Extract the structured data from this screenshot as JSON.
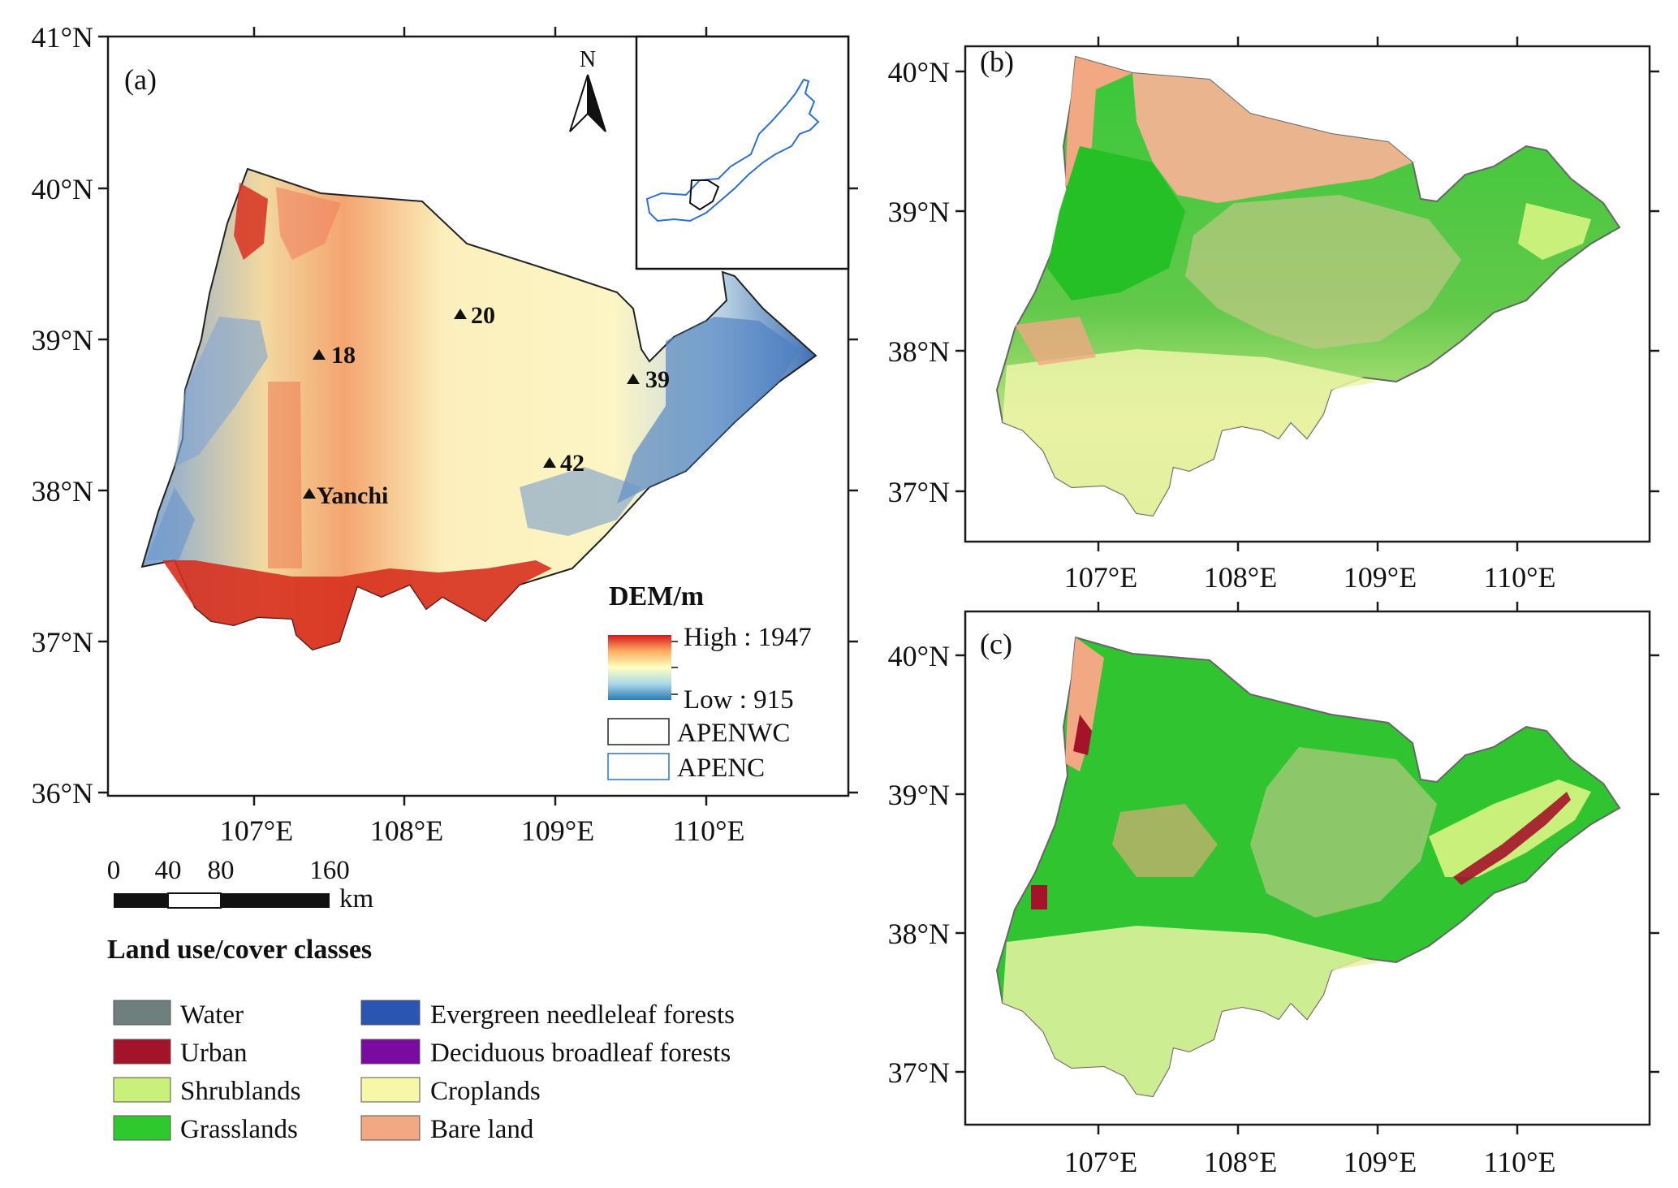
{
  "panel_a": {
    "label": "(a)",
    "lat_labels": [
      "41°N",
      "40°N",
      "39°N",
      "38°N",
      "37°N",
      "36°N"
    ],
    "lon_labels": [
      "107°E",
      "108°E",
      "109°E",
      "110°E"
    ],
    "north_arrow": "N",
    "stations": [
      "20",
      "18",
      "39",
      "42",
      "Yanchi"
    ],
    "dem_legend": {
      "title": "DEM/m",
      "high": "High : 1947",
      "low": "Low : 915",
      "colors": [
        "#d7191c",
        "#fdae61",
        "#ffffbf",
        "#abd9e9",
        "#2c7bb6"
      ]
    },
    "boundary_legend": [
      {
        "label": "APENWC",
        "color": "#222222"
      },
      {
        "label": "APENC",
        "color": "#2b6fd6"
      }
    ]
  },
  "panel_b": {
    "label": "(b)",
    "lat_labels": [
      "40°N",
      "39°N",
      "38°N",
      "37°N"
    ],
    "lon_labels": [
      "107°E",
      "108°E",
      "109°E",
      "110°E"
    ]
  },
  "panel_c": {
    "label": "(c)",
    "lat_labels": [
      "40°N",
      "39°N",
      "38°N",
      "37°N"
    ],
    "lon_labels": [
      "107°E",
      "108°E",
      "109°E",
      "110°E"
    ]
  },
  "scale_bar": {
    "labels": [
      "0",
      "40",
      "80",
      "160"
    ],
    "unit": "km"
  },
  "landcover_legend": {
    "title": "Land use/cover classes",
    "classes": [
      {
        "label": "Water",
        "color": "#6e7f7d"
      },
      {
        "label": "Urban",
        "color": "#a3142a"
      },
      {
        "label": "Shrublands",
        "color": "#c8f07a"
      },
      {
        "label": "Grasslands",
        "color": "#2fc92f"
      },
      {
        "label": "Evergreen needleleaf forests",
        "color": "#2a55b0"
      },
      {
        "label": "Deciduous broadleaf forests",
        "color": "#7b0aa0"
      },
      {
        "label": "Croplands",
        "color": "#f7f7a8"
      },
      {
        "label": "Bare land",
        "color": "#f2a882"
      }
    ]
  }
}
